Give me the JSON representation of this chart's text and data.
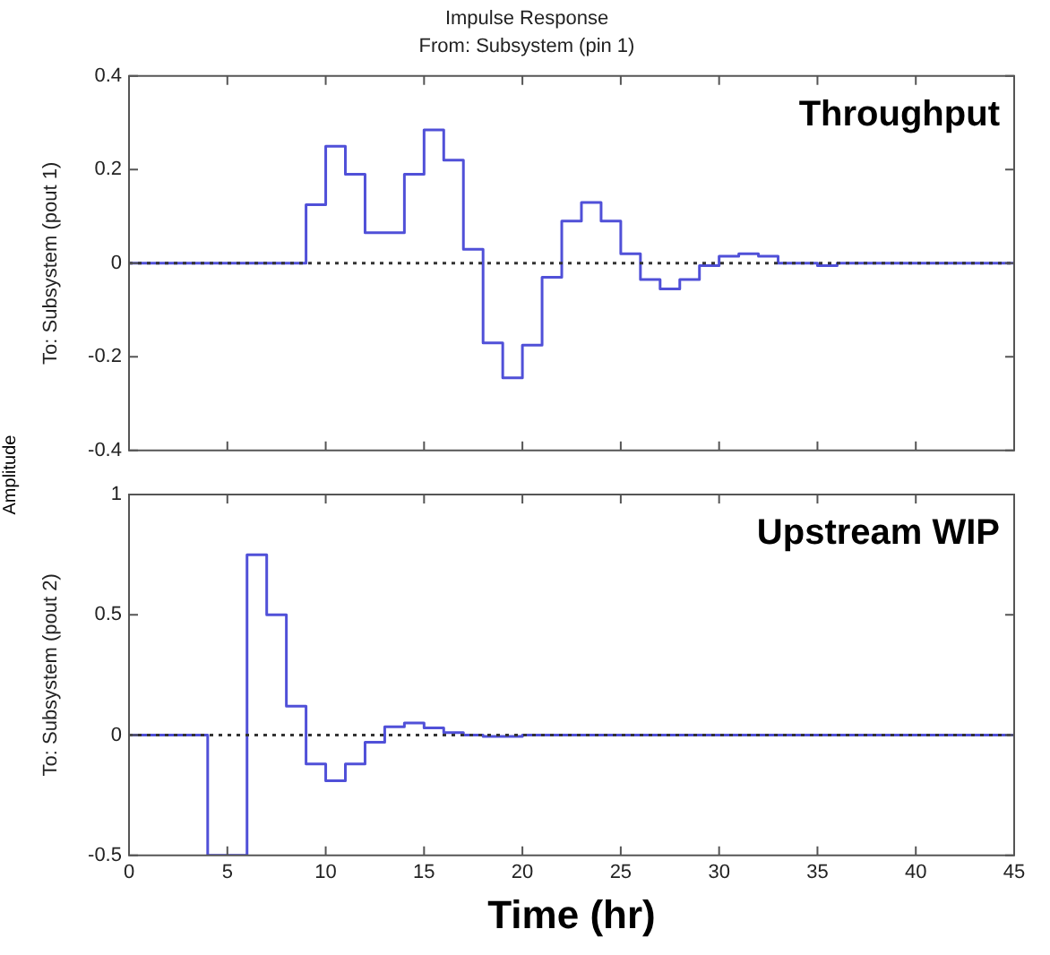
{
  "chart_data": [
    {
      "type": "step",
      "title": "Impulse Response",
      "subtitle": "From: Subsystem (pin 1)",
      "ylabel": "To: Subsystem (pout 1)",
      "annotations": [
        "Throughput",
        "Amplitude"
      ],
      "color": "#5050d8",
      "x": [
        0,
        1,
        2,
        3,
        4,
        5,
        6,
        7,
        8,
        9,
        10,
        11,
        12,
        13,
        14,
        15,
        16,
        17,
        18,
        19,
        20,
        21,
        22,
        23,
        24,
        25,
        26,
        27,
        28,
        29,
        30,
        31,
        32,
        33,
        34,
        35,
        36,
        37,
        38,
        39,
        40,
        41,
        42,
        43,
        44,
        45
      ],
      "values": [
        0,
        0,
        0,
        0,
        0,
        0,
        0,
        0,
        0,
        0.125,
        0.25,
        0.19,
        0.065,
        0.065,
        0.19,
        0.285,
        0.22,
        0.03,
        -0.17,
        -0.245,
        -0.175,
        -0.03,
        0.09,
        0.13,
        0.09,
        0.02,
        -0.035,
        -0.055,
        -0.035,
        -0.005,
        0.015,
        0.02,
        0.015,
        0,
        0,
        -0.005,
        0,
        0,
        0,
        0,
        0,
        0,
        0,
        0,
        0,
        0
      ],
      "xlim": [
        0,
        45
      ],
      "xticks": [
        0,
        5,
        10,
        15,
        20,
        25,
        30,
        35,
        40,
        45
      ],
      "ylim": [
        -0.4,
        0.4
      ],
      "yticks": [
        -0.4,
        -0.2,
        0,
        0.2,
        0.4
      ],
      "tick_labels": "y",
      "grid": false,
      "ref_lines": [
        {
          "axis": "y",
          "value": 0,
          "color": "#333333",
          "line_style": "dotted"
        }
      ]
    },
    {
      "type": "step",
      "xlabel": "Time (hr)",
      "ylabel": "To: Subsystem (pout 2)",
      "annotations": [
        "Upstream WIP"
      ],
      "color": "#5050d8",
      "x": [
        0,
        1,
        2,
        3,
        4,
        5,
        6,
        7,
        8,
        9,
        10,
        11,
        12,
        13,
        14,
        15,
        16,
        17,
        18,
        19,
        20,
        21,
        22,
        23,
        24,
        25,
        26,
        27,
        28,
        29,
        30,
        31,
        32,
        33,
        34,
        35,
        36,
        37,
        38,
        39,
        40,
        41,
        42,
        43,
        44,
        45
      ],
      "values": [
        0,
        0,
        0,
        0,
        -0.5,
        -0.5,
        0.75,
        0.5,
        0.12,
        -0.12,
        -0.19,
        -0.12,
        -0.03,
        0.035,
        0.05,
        0.03,
        0.01,
        0,
        -0.005,
        -0.005,
        0,
        0,
        0,
        0,
        0,
        0,
        0,
        0,
        0,
        0,
        0,
        0,
        0,
        0,
        0,
        0,
        0,
        0,
        0,
        0,
        0,
        0,
        0,
        0,
        0,
        0
      ],
      "xlim": [
        0,
        45
      ],
      "xticks": [
        0,
        5,
        10,
        15,
        20,
        25,
        30,
        35,
        40,
        45
      ],
      "ylim": [
        -0.5,
        1
      ],
      "yticks": [
        -0.5,
        0,
        0.5,
        1
      ],
      "grid": false,
      "ref_lines": [
        {
          "axis": "y",
          "value": 0,
          "color": "#333333",
          "line_style": "dotted"
        }
      ]
    }
  ]
}
